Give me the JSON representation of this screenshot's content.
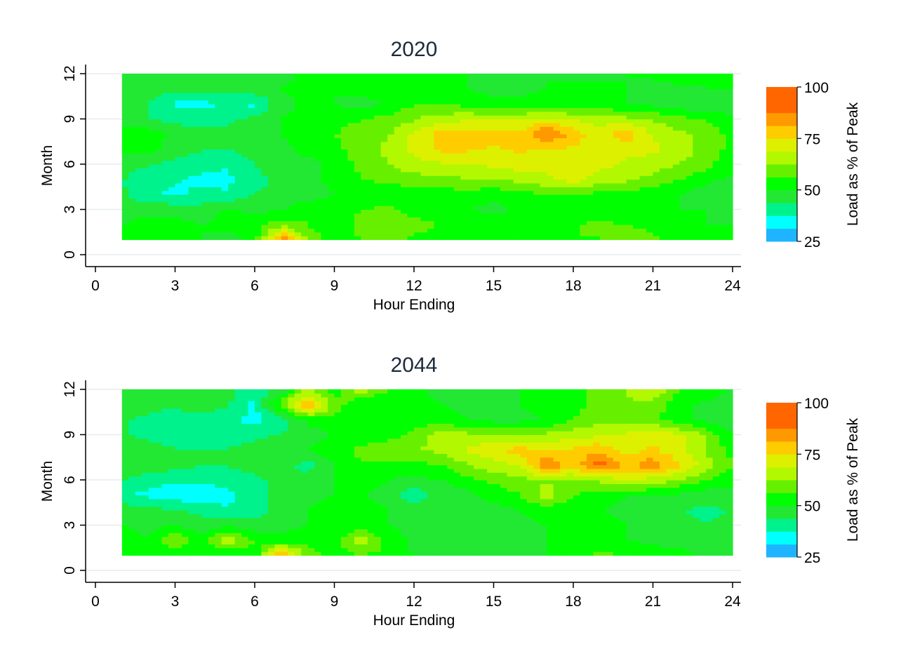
{
  "chart_data": [
    {
      "type": "heatmap",
      "title": "2020",
      "xlabel": "Hour Ending",
      "ylabel": "Month",
      "x_ticks": [
        "0",
        "3",
        "6",
        "9",
        "12",
        "15",
        "18",
        "21",
        "24"
      ],
      "y_ticks": [
        "0",
        "3",
        "6",
        "9",
        "12"
      ],
      "xlim": [
        0,
        24
      ],
      "ylim": [
        0,
        12
      ],
      "grid": true,
      "legend": {
        "title": "Load as % of Peak",
        "position": "right",
        "tick_labels": [
          "100",
          "75",
          "50",
          "25"
        ],
        "bins": [
          {
            "from": 25,
            "to": 31.25,
            "color": "#1EB4FF"
          },
          {
            "from": 31.25,
            "to": 37.5,
            "color": "#00FFFF"
          },
          {
            "from": 37.5,
            "to": 43.75,
            "color": "#00F28C"
          },
          {
            "from": 43.75,
            "to": 50,
            "color": "#22E834"
          },
          {
            "from": 50,
            "to": 56.25,
            "color": "#00FF00"
          },
          {
            "from": 56.25,
            "to": 62.5,
            "color": "#66F000"
          },
          {
            "from": 62.5,
            "to": 68.75,
            "color": "#B2F800"
          },
          {
            "from": 68.75,
            "to": 75,
            "color": "#DDF000"
          },
          {
            "from": 75,
            "to": 81.25,
            "color": "#FFCC00"
          },
          {
            "from": 81.25,
            "to": 87.5,
            "color": "#FF9900"
          },
          {
            "from": 87.5,
            "to": 100,
            "color": "#FF6600"
          }
        ]
      },
      "hours": [
        1,
        2,
        3,
        4,
        5,
        6,
        7,
        8,
        9,
        10,
        11,
        12,
        13,
        14,
        15,
        16,
        17,
        18,
        19,
        20,
        21,
        22,
        23,
        24
      ],
      "months": [
        1,
        2,
        3,
        4,
        5,
        6,
        7,
        8,
        9,
        10,
        11,
        12
      ],
      "z": [
        [
          54,
          52,
          52,
          50,
          48,
          52,
          88,
          60,
          54,
          56,
          58,
          55,
          55,
          54,
          52,
          52,
          54,
          56,
          56,
          60,
          58,
          54,
          52,
          52
        ],
        [
          50,
          52,
          52,
          50,
          52,
          54,
          60,
          56,
          52,
          58,
          60,
          58,
          56,
          56,
          54,
          52,
          54,
          56,
          58,
          56,
          54,
          52,
          50,
          50
        ],
        [
          48,
          48,
          48,
          46,
          52,
          48,
          50,
          56,
          54,
          56,
          58,
          54,
          52,
          50,
          48,
          52,
          54,
          52,
          50,
          50,
          52,
          50,
          50,
          48
        ],
        [
          45,
          38,
          36,
          40,
          38,
          44,
          44,
          46,
          50,
          52,
          50,
          54,
          52,
          54,
          52,
          54,
          56,
          56,
          54,
          54,
          52,
          50,
          46,
          46
        ],
        [
          44,
          40,
          38,
          36,
          36,
          42,
          46,
          48,
          52,
          56,
          58,
          60,
          60,
          62,
          62,
          64,
          68,
          72,
          66,
          64,
          60,
          56,
          52,
          48
        ],
        [
          46,
          44,
          42,
          40,
          38,
          44,
          46,
          48,
          52,
          58,
          62,
          66,
          68,
          68,
          70,
          72,
          70,
          70,
          70,
          68,
          66,
          62,
          58,
          52
        ],
        [
          52,
          52,
          46,
          44,
          44,
          46,
          48,
          52,
          54,
          60,
          64,
          70,
          76,
          76,
          74,
          76,
          74,
          74,
          72,
          70,
          70,
          66,
          60,
          54
        ],
        [
          54,
          54,
          48,
          46,
          46,
          48,
          50,
          54,
          56,
          60,
          62,
          70,
          78,
          78,
          78,
          76,
          90,
          78,
          72,
          80,
          68,
          64,
          60,
          54
        ],
        [
          46,
          44,
          42,
          40,
          42,
          46,
          50,
          52,
          54,
          56,
          58,
          62,
          66,
          68,
          68,
          68,
          70,
          68,
          66,
          64,
          62,
          58,
          56,
          52
        ],
        [
          46,
          44,
          36,
          36,
          38,
          36,
          48,
          52,
          50,
          48,
          50,
          56,
          56,
          54,
          52,
          52,
          54,
          52,
          52,
          50,
          48,
          46,
          44,
          46
        ],
        [
          48,
          46,
          46,
          46,
          46,
          48,
          50,
          52,
          50,
          52,
          54,
          56,
          54,
          50,
          48,
          48,
          50,
          52,
          52,
          50,
          46,
          48,
          50,
          50
        ],
        [
          48,
          48,
          48,
          48,
          48,
          48,
          48,
          52,
          54,
          54,
          52,
          54,
          52,
          50,
          48,
          48,
          50,
          48,
          48,
          50,
          52,
          56,
          50,
          52
        ]
      ]
    },
    {
      "type": "heatmap",
      "title": "2044",
      "xlabel": "Hour Ending",
      "ylabel": "Month",
      "x_ticks": [
        "0",
        "3",
        "6",
        "9",
        "12",
        "15",
        "18",
        "21",
        "24"
      ],
      "y_ticks": [
        "0",
        "3",
        "6",
        "9",
        "12"
      ],
      "xlim": [
        0,
        24
      ],
      "ylim": [
        0,
        12
      ],
      "grid": true,
      "legend": {
        "title": "Load as % of Peak",
        "position": "right",
        "tick_labels": [
          "100",
          "75",
          "50",
          "25"
        ],
        "bins": [
          {
            "from": 25,
            "to": 31.25,
            "color": "#1EB4FF"
          },
          {
            "from": 31.25,
            "to": 37.5,
            "color": "#00FFFF"
          },
          {
            "from": 37.5,
            "to": 43.75,
            "color": "#00F28C"
          },
          {
            "from": 43.75,
            "to": 50,
            "color": "#22E834"
          },
          {
            "from": 50,
            "to": 56.25,
            "color": "#00FF00"
          },
          {
            "from": 56.25,
            "to": 62.5,
            "color": "#66F000"
          },
          {
            "from": 62.5,
            "to": 68.75,
            "color": "#B2F800"
          },
          {
            "from": 68.75,
            "to": 75,
            "color": "#DDF000"
          },
          {
            "from": 75,
            "to": 81.25,
            "color": "#FFCC00"
          },
          {
            "from": 81.25,
            "to": 87.5,
            "color": "#FF9900"
          },
          {
            "from": 87.5,
            "to": 100,
            "color": "#FF6600"
          }
        ]
      },
      "hours": [
        1,
        2,
        3,
        4,
        5,
        6,
        7,
        8,
        9,
        10,
        11,
        12,
        13,
        14,
        15,
        16,
        17,
        18,
        19,
        20,
        21,
        22,
        23,
        24
      ],
      "months": [
        1,
        2,
        3,
        4,
        5,
        6,
        7,
        8,
        9,
        10,
        11,
        12
      ],
      "z": [
        [
          54,
          52,
          52,
          50,
          48,
          52,
          86,
          60,
          54,
          56,
          54,
          50,
          50,
          48,
          48,
          48,
          50,
          52,
          58,
          56,
          54,
          52,
          48,
          46
        ],
        [
          52,
          50,
          62,
          52,
          68,
          56,
          52,
          54,
          52,
          68,
          54,
          48,
          46,
          46,
          46,
          48,
          50,
          52,
          52,
          50,
          48,
          48,
          46,
          46
        ],
        [
          50,
          48,
          50,
          46,
          48,
          46,
          48,
          50,
          50,
          52,
          50,
          48,
          46,
          46,
          46,
          48,
          50,
          52,
          52,
          50,
          48,
          46,
          44,
          46
        ],
        [
          48,
          46,
          44,
          42,
          38,
          40,
          48,
          50,
          52,
          52,
          50,
          48,
          46,
          46,
          48,
          50,
          52,
          52,
          50,
          48,
          46,
          44,
          42,
          44
        ],
        [
          38,
          36,
          34,
          34,
          36,
          40,
          46,
          48,
          50,
          50,
          48,
          40,
          46,
          48,
          52,
          56,
          66,
          56,
          52,
          50,
          50,
          48,
          46,
          48
        ],
        [
          44,
          40,
          38,
          38,
          40,
          42,
          46,
          48,
          50,
          52,
          50,
          48,
          50,
          54,
          58,
          60,
          62,
          62,
          64,
          68,
          66,
          62,
          56,
          52
        ],
        [
          50,
          48,
          46,
          44,
          44,
          46,
          48,
          40,
          50,
          56,
          54,
          54,
          56,
          62,
          66,
          70,
          88,
          78,
          92,
          80,
          86,
          76,
          66,
          56
        ],
        [
          48,
          46,
          44,
          44,
          44,
          46,
          48,
          50,
          54,
          58,
          60,
          62,
          64,
          70,
          74,
          78,
          74,
          76,
          80,
          72,
          76,
          70,
          62,
          54
        ],
        [
          44,
          42,
          40,
          40,
          42,
          42,
          44,
          46,
          50,
          52,
          54,
          58,
          66,
          64,
          62,
          62,
          64,
          66,
          68,
          70,
          74,
          70,
          62,
          50
        ],
        [
          44,
          42,
          38,
          40,
          38,
          36,
          40,
          52,
          54,
          54,
          52,
          54,
          52,
          50,
          48,
          48,
          50,
          56,
          60,
          60,
          58,
          52,
          48,
          46
        ],
        [
          48,
          46,
          46,
          50,
          44,
          36,
          60,
          84,
          60,
          50,
          50,
          52,
          50,
          48,
          48,
          50,
          52,
          54,
          58,
          62,
          60,
          52,
          48,
          46
        ],
        [
          50,
          48,
          46,
          48,
          46,
          40,
          46,
          62,
          52,
          66,
          56,
          52,
          48,
          48,
          48,
          50,
          52,
          54,
          60,
          62,
          70,
          56,
          56,
          48
        ]
      ]
    }
  ]
}
